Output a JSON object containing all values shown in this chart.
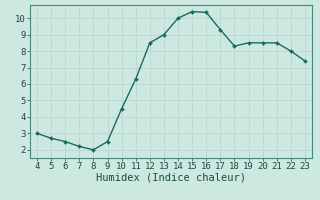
{
  "x": [
    4,
    5,
    6,
    7,
    8,
    9,
    10,
    11,
    12,
    13,
    14,
    15,
    16,
    17,
    18,
    19,
    20,
    21,
    22,
    23
  ],
  "y": [
    3.0,
    2.7,
    2.5,
    2.2,
    2.0,
    2.5,
    4.5,
    6.3,
    8.5,
    9.0,
    10.0,
    10.4,
    10.35,
    9.3,
    8.3,
    8.5,
    8.5,
    8.5,
    8.0,
    7.4
  ],
  "line_color": "#1a6b5a",
  "marker_color": "#1a6b5a",
  "bg_color": "#cce8e0",
  "grid_major_color": "#b8d8d0",
  "grid_minor_color": "#daf0ea",
  "xlabel": "Humidex (Indice chaleur)",
  "xlim": [
    3.5,
    23.5
  ],
  "ylim": [
    1.5,
    10.8
  ],
  "yticks": [
    2,
    3,
    4,
    5,
    6,
    7,
    8,
    9,
    10
  ],
  "xticks": [
    4,
    5,
    6,
    7,
    8,
    9,
    10,
    11,
    12,
    13,
    14,
    15,
    16,
    17,
    18,
    19,
    20,
    21,
    22,
    23
  ],
  "tick_label_fontsize": 6.5,
  "xlabel_fontsize": 7.5,
  "axis_color": "#3a7a6a",
  "spine_color": "#4a8a7a"
}
